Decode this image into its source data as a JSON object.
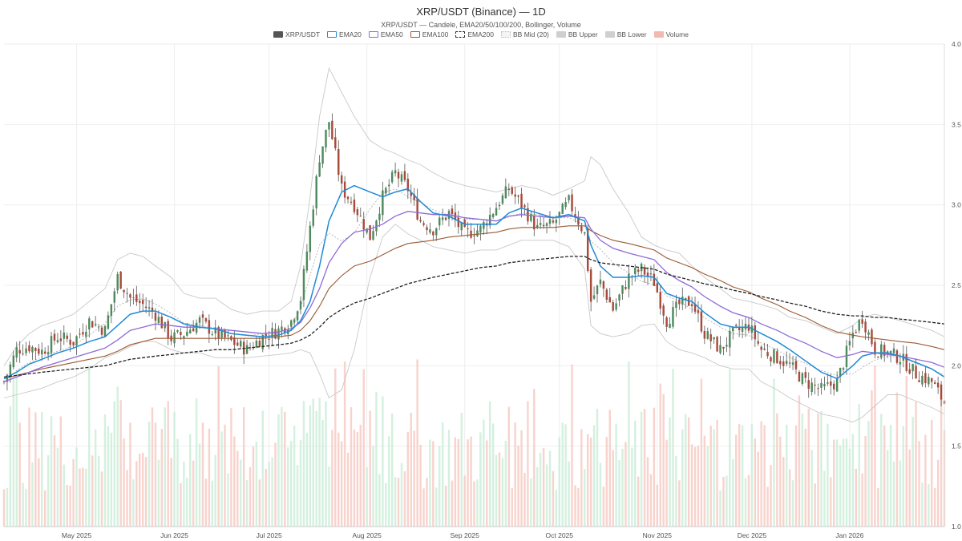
{
  "chart_data": {
    "type": "candlestick",
    "title": "XRP/USDT (Binance) — 1D",
    "subtitle": "XRP/USDT — Candele, EMA20/50/100/200, Bollinger, Volume",
    "legend": [
      {
        "name": "XRP/USDT",
        "color": "#555555",
        "style": "fill"
      },
      {
        "name": "EMA20",
        "color": "#1f8ad6",
        "style": "outline"
      },
      {
        "name": "EMA50",
        "color": "#8f6ad8",
        "style": "outline"
      },
      {
        "name": "EMA100",
        "color": "#9a5a35",
        "style": "outline"
      },
      {
        "name": "EMA200",
        "color": "#222222",
        "style": "dashed"
      },
      {
        "name": "BB Mid (20)",
        "color": "#bbbbbb",
        "style": "dotted"
      },
      {
        "name": "BB Upper",
        "color": "#cfcfcf",
        "style": "fill"
      },
      {
        "name": "BB Lower",
        "color": "#cfcfcf",
        "style": "fill"
      },
      {
        "name": "Volume",
        "color": "#f2b9ae",
        "style": "fill"
      }
    ],
    "y_axis": {
      "side": "right",
      "ylim": [
        1.0,
        4.0
      ],
      "ticks": [
        "1.0",
        "1.5",
        "2.0",
        "2.5",
        "3.0",
        "3.5",
        "4.0"
      ]
    },
    "x_axis": {
      "start": "2025-04-08",
      "end": "2026-01-31",
      "ticks": [
        {
          "date": "2025-05-01",
          "label": "May 2025"
        },
        {
          "date": "2025-06-01",
          "label": "Jun 2025"
        },
        {
          "date": "2025-07-01",
          "label": "Jul 2025"
        },
        {
          "date": "2025-08-01",
          "label": "Aug 2025"
        },
        {
          "date": "2025-09-01",
          "label": "Sep 2025"
        },
        {
          "date": "2025-10-01",
          "label": "Oct 2025"
        },
        {
          "date": "2025-11-01",
          "label": "Nov 2025"
        },
        {
          "date": "2025-12-01",
          "label": "Dec 2025"
        },
        {
          "date": "2026-01-01",
          "label": "Jan 2026"
        }
      ]
    },
    "grid": true,
    "close_series": {
      "dates": [
        "2025-04-08",
        "2025-04-12",
        "2025-04-16",
        "2025-04-20",
        "2025-04-25",
        "2025-04-30",
        "2025-05-05",
        "2025-05-10",
        "2025-05-14",
        "2025-05-18",
        "2025-05-22",
        "2025-05-26",
        "2025-05-31",
        "2025-06-04",
        "2025-06-09",
        "2025-06-14",
        "2025-06-19",
        "2025-06-24",
        "2025-06-29",
        "2025-07-04",
        "2025-07-08",
        "2025-07-11",
        "2025-07-14",
        "2025-07-17",
        "2025-07-20",
        "2025-07-24",
        "2025-07-28",
        "2025-08-02",
        "2025-08-06",
        "2025-08-10",
        "2025-08-14",
        "2025-08-18",
        "2025-08-22",
        "2025-08-27",
        "2025-09-01",
        "2025-09-06",
        "2025-09-11",
        "2025-09-15",
        "2025-09-19",
        "2025-09-24",
        "2025-09-29",
        "2025-10-04",
        "2025-10-09",
        "2025-10-11",
        "2025-10-14",
        "2025-10-18",
        "2025-10-23",
        "2025-10-27",
        "2025-10-31",
        "2025-11-04",
        "2025-11-08",
        "2025-11-12",
        "2025-11-16",
        "2025-11-21",
        "2025-11-25",
        "2025-11-30",
        "2025-12-04",
        "2025-12-09",
        "2025-12-13",
        "2025-12-18",
        "2025-12-23",
        "2025-12-28",
        "2026-01-02",
        "2026-01-05",
        "2026-01-09",
        "2026-01-13",
        "2026-01-17",
        "2026-01-22",
        "2026-01-27",
        "2026-01-31"
      ],
      "close": [
        1.9,
        2.1,
        2.12,
        2.09,
        2.18,
        2.15,
        2.28,
        2.22,
        2.55,
        2.42,
        2.38,
        2.32,
        2.17,
        2.2,
        2.28,
        2.2,
        2.15,
        2.1,
        2.18,
        2.22,
        2.28,
        2.42,
        2.86,
        3.3,
        3.52,
        3.1,
        3.0,
        2.8,
        3.05,
        3.2,
        3.1,
        2.9,
        2.85,
        2.95,
        2.82,
        2.85,
        2.99,
        3.1,
        3.0,
        2.85,
        2.88,
        3.02,
        2.82,
        2.4,
        2.52,
        2.35,
        2.55,
        2.6,
        2.52,
        2.28,
        2.38,
        2.4,
        2.2,
        2.1,
        2.2,
        2.25,
        2.1,
        2.05,
        2.0,
        1.9,
        1.85,
        1.9,
        2.2,
        2.3,
        2.1,
        2.08,
        2.05,
        1.95,
        1.9,
        1.77
      ]
    },
    "indicators": {
      "EMA20": [
        1.92,
        1.96,
        2.01,
        2.04,
        2.08,
        2.11,
        2.15,
        2.18,
        2.25,
        2.32,
        2.34,
        2.34,
        2.3,
        2.26,
        2.24,
        2.23,
        2.2,
        2.19,
        2.18,
        2.19,
        2.22,
        2.28,
        2.4,
        2.62,
        2.9,
        3.08,
        3.12,
        3.08,
        3.05,
        3.08,
        3.1,
        3.02,
        2.95,
        2.93,
        2.88,
        2.88,
        2.88,
        2.95,
        2.98,
        2.95,
        2.92,
        2.94,
        2.9,
        2.75,
        2.62,
        2.55,
        2.55,
        2.56,
        2.55,
        2.45,
        2.42,
        2.4,
        2.33,
        2.26,
        2.24,
        2.24,
        2.2,
        2.15,
        2.1,
        2.03,
        1.96,
        1.92,
        2.0,
        2.06,
        2.08,
        2.08,
        2.06,
        2.02,
        1.98,
        1.93
      ],
      "EMA50": [
        1.9,
        1.93,
        1.96,
        1.99,
        2.02,
        2.05,
        2.08,
        2.11,
        2.16,
        2.22,
        2.24,
        2.26,
        2.25,
        2.24,
        2.24,
        2.23,
        2.22,
        2.21,
        2.2,
        2.21,
        2.23,
        2.27,
        2.36,
        2.48,
        2.64,
        2.76,
        2.83,
        2.85,
        2.88,
        2.93,
        2.96,
        2.95,
        2.94,
        2.94,
        2.92,
        2.91,
        2.9,
        2.93,
        2.94,
        2.93,
        2.92,
        2.93,
        2.92,
        2.85,
        2.78,
        2.73,
        2.7,
        2.68,
        2.66,
        2.58,
        2.53,
        2.49,
        2.43,
        2.37,
        2.33,
        2.3,
        2.26,
        2.22,
        2.18,
        2.14,
        2.09,
        2.05,
        2.07,
        2.09,
        2.08,
        2.07,
        2.06,
        2.04,
        2.02,
        1.99
      ],
      "EMA100": [
        1.92,
        1.94,
        1.96,
        1.98,
        2.0,
        2.02,
        2.04,
        2.06,
        2.09,
        2.13,
        2.15,
        2.17,
        2.17,
        2.17,
        2.17,
        2.17,
        2.17,
        2.17,
        2.17,
        2.18,
        2.19,
        2.22,
        2.28,
        2.37,
        2.48,
        2.56,
        2.62,
        2.65,
        2.69,
        2.73,
        2.76,
        2.77,
        2.78,
        2.8,
        2.81,
        2.82,
        2.83,
        2.85,
        2.86,
        2.86,
        2.86,
        2.87,
        2.87,
        2.84,
        2.81,
        2.78,
        2.76,
        2.74,
        2.72,
        2.67,
        2.64,
        2.61,
        2.57,
        2.53,
        2.49,
        2.46,
        2.42,
        2.38,
        2.34,
        2.3,
        2.25,
        2.21,
        2.19,
        2.18,
        2.17,
        2.16,
        2.15,
        2.14,
        2.12,
        2.1
      ],
      "EMA200": [
        1.93,
        1.94,
        1.95,
        1.96,
        1.97,
        1.98,
        1.99,
        2.0,
        2.02,
        2.04,
        2.05,
        2.06,
        2.07,
        2.08,
        2.09,
        2.1,
        2.1,
        2.11,
        2.12,
        2.13,
        2.14,
        2.16,
        2.19,
        2.24,
        2.3,
        2.35,
        2.39,
        2.42,
        2.45,
        2.48,
        2.51,
        2.53,
        2.55,
        2.57,
        2.59,
        2.61,
        2.62,
        2.64,
        2.65,
        2.66,
        2.67,
        2.68,
        2.68,
        2.66,
        2.64,
        2.63,
        2.62,
        2.61,
        2.6,
        2.57,
        2.55,
        2.53,
        2.51,
        2.49,
        2.47,
        2.45,
        2.43,
        2.41,
        2.39,
        2.37,
        2.34,
        2.32,
        2.31,
        2.31,
        2.3,
        2.3,
        2.29,
        2.28,
        2.27,
        2.26
      ],
      "BB Upper": [
        2.0,
        2.12,
        2.2,
        2.25,
        2.28,
        2.32,
        2.4,
        2.48,
        2.66,
        2.7,
        2.68,
        2.62,
        2.55,
        2.45,
        2.42,
        2.42,
        2.35,
        2.32,
        2.34,
        2.34,
        2.4,
        2.62,
        3.05,
        3.55,
        3.85,
        3.7,
        3.55,
        3.4,
        3.35,
        3.32,
        3.28,
        3.25,
        3.2,
        3.15,
        3.12,
        3.1,
        3.08,
        3.1,
        3.12,
        3.1,
        3.06,
        3.1,
        3.15,
        3.3,
        3.25,
        3.1,
        2.95,
        2.8,
        2.75,
        2.72,
        2.7,
        2.62,
        2.55,
        2.48,
        2.42,
        2.4,
        2.38,
        2.35,
        2.3,
        2.28,
        2.24,
        2.2,
        2.25,
        2.3,
        2.32,
        2.3,
        2.28,
        2.25,
        2.22,
        2.18
      ],
      "BB Lower": [
        1.8,
        1.82,
        1.84,
        1.86,
        1.9,
        1.93,
        1.98,
        2.05,
        2.08,
        2.12,
        2.15,
        2.15,
        2.1,
        2.08,
        2.08,
        2.05,
        2.05,
        2.05,
        2.06,
        2.07,
        2.08,
        2.1,
        2.08,
        1.95,
        1.8,
        1.85,
        2.1,
        2.55,
        2.8,
        2.88,
        2.82,
        2.78,
        2.74,
        2.72,
        2.7,
        2.72,
        2.72,
        2.75,
        2.78,
        2.78,
        2.78,
        2.74,
        2.6,
        2.25,
        2.2,
        2.18,
        2.2,
        2.25,
        2.26,
        2.15,
        2.1,
        2.08,
        2.05,
        2.0,
        1.98,
        1.98,
        1.9,
        1.85,
        1.8,
        1.75,
        1.7,
        1.68,
        1.65,
        1.68,
        1.75,
        1.82,
        1.82,
        1.78,
        1.74,
        1.7
      ]
    },
    "volume_note": "Volume bars shown as background columns scaled to the lower portion of the chart"
  }
}
